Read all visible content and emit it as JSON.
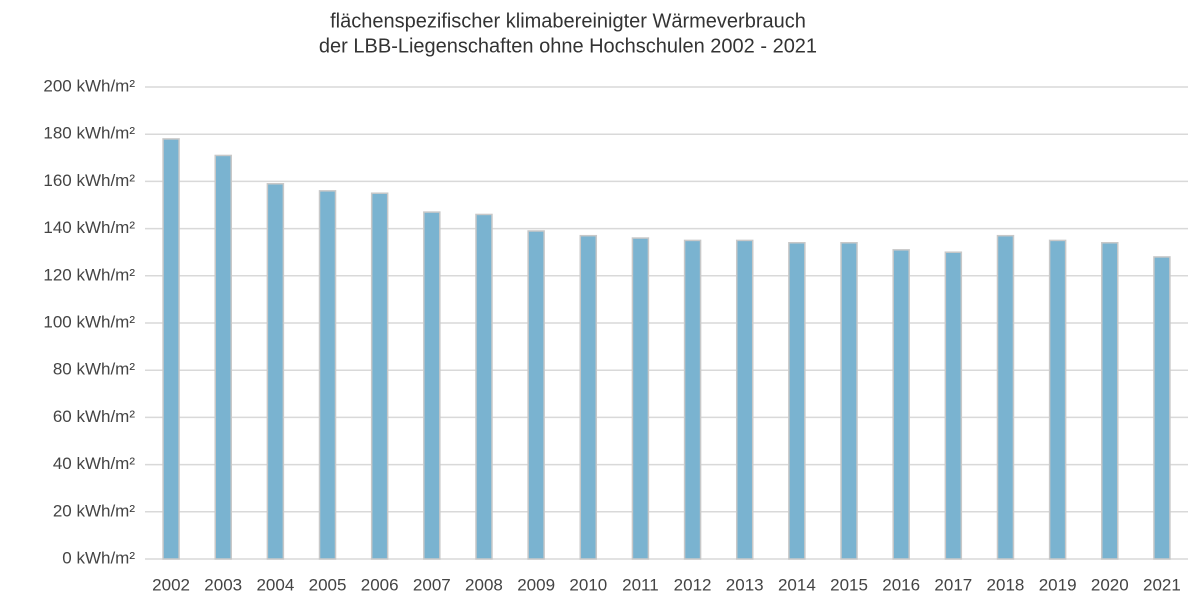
{
  "chart_data": {
    "type": "bar",
    "title": [
      "flächenspezifischer klimabereinigter Wärmeverbrauch",
      "der LBB-Liegenschaften ohne Hochschulen 2002 - 2021"
    ],
    "categories": [
      "2002",
      "2003",
      "2004",
      "2005",
      "2006",
      "2007",
      "2008",
      "2009",
      "2010",
      "2011",
      "2012",
      "2013",
      "2014",
      "2015",
      "2016",
      "2017",
      "2018",
      "2019",
      "2020",
      "2021"
    ],
    "values": [
      178,
      171,
      159,
      156,
      155,
      147,
      146,
      139,
      137,
      136,
      135,
      135,
      134,
      134,
      131,
      130,
      137,
      135,
      134,
      128
    ],
    "color": "#7ab3d0",
    "ylim": [
      0,
      200
    ],
    "yticks": [
      {
        "value": 0,
        "label": "0 kWh/m²"
      },
      {
        "value": 20,
        "label": "20 kWh/m²"
      },
      {
        "value": 40,
        "label": "40 kWh/m²"
      },
      {
        "value": 60,
        "label": "60 kWh/m²"
      },
      {
        "value": 80,
        "label": "80 kWh/m²"
      },
      {
        "value": 100,
        "label": "100 kWh/m²"
      },
      {
        "value": 120,
        "label": "120 kWh/m²"
      },
      {
        "value": 140,
        "label": "140 kWh/m²"
      },
      {
        "value": 160,
        "label": "160 kWh/m²"
      },
      {
        "value": 180,
        "label": "180 kWh/m²"
      },
      {
        "value": 200,
        "label": "200 kWh/m²"
      }
    ],
    "grid": true
  }
}
